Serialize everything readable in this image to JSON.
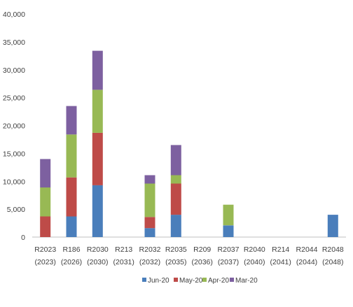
{
  "chart_data": {
    "type": "bar",
    "stacked": true,
    "title": "",
    "xlabel": "",
    "ylabel": "",
    "ylim": [
      0,
      40000
    ],
    "yticks": [
      "0",
      "5,000",
      "10,000",
      "15,000",
      "20,000",
      "25,000",
      "30,000",
      "35,000",
      "40,000"
    ],
    "grid": false,
    "legend_position": "bottom",
    "categories": [
      [
        "R2023",
        "(2023)"
      ],
      [
        "R186",
        "(2026)"
      ],
      [
        "R2030",
        "(2030)"
      ],
      [
        "R213",
        "(2031)"
      ],
      [
        "R2032",
        "(2032)"
      ],
      [
        "R2035",
        "(2035)"
      ],
      [
        "R209",
        "(2036)"
      ],
      [
        "R2037",
        "(2037)"
      ],
      [
        "R2040",
        "(2040)"
      ],
      [
        "R214",
        "(2041)"
      ],
      [
        "R2044",
        "(2044)"
      ],
      [
        "R2048",
        "(2048)"
      ]
    ],
    "series": [
      {
        "name": "Jun-20",
        "color": "#4a7ebb",
        "values": [
          0,
          3700,
          9300,
          0,
          1600,
          4000,
          0,
          2100,
          0,
          0,
          0,
          4000
        ]
      },
      {
        "name": "May-20",
        "color": "#be4b48",
        "values": [
          3700,
          7000,
          9400,
          0,
          2000,
          5600,
          0,
          0,
          0,
          0,
          0,
          0
        ]
      },
      {
        "name": "Apr-20",
        "color": "#98b954",
        "values": [
          5200,
          7700,
          7700,
          0,
          6000,
          1500,
          0,
          3700,
          0,
          0,
          0,
          0
        ]
      },
      {
        "name": "Mar-20",
        "color": "#7d60a0",
        "values": [
          5100,
          5100,
          7000,
          0,
          1500,
          5400,
          0,
          0,
          0,
          0,
          0,
          0
        ]
      }
    ]
  }
}
